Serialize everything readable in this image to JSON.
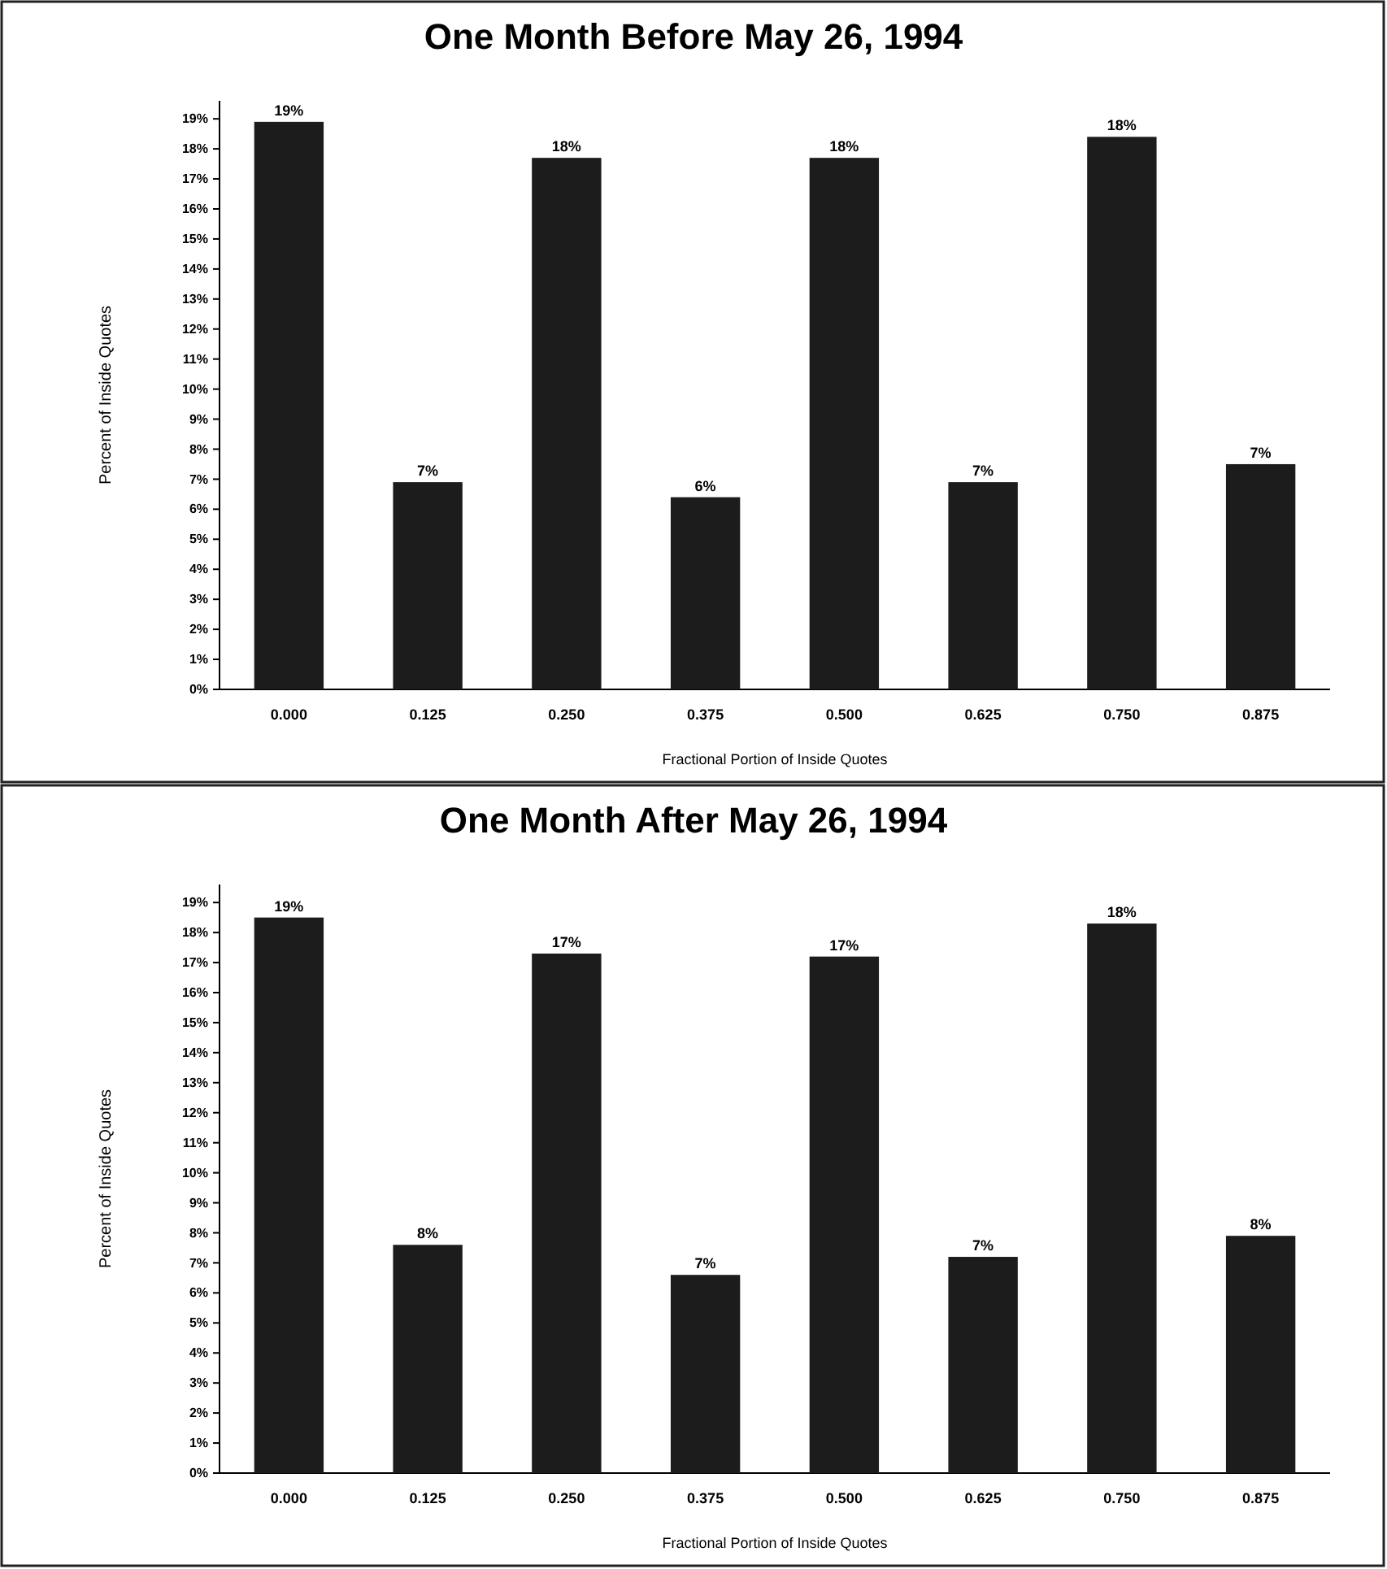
{
  "chart_data": [
    {
      "type": "bar",
      "title": "One Month Before May 26, 1994",
      "xlabel": "Fractional Portion of Inside Quotes",
      "ylabel": "Percent of Inside Quotes",
      "categories": [
        "0.000",
        "0.125",
        "0.250",
        "0.375",
        "0.500",
        "0.625",
        "0.750",
        "0.875"
      ],
      "values": [
        18.9,
        6.9,
        17.7,
        6.4,
        17.7,
        6.9,
        18.4,
        7.5
      ],
      "value_labels": [
        "19%",
        "7%",
        "18%",
        "6%",
        "18%",
        "7%",
        "18%",
        "7%"
      ],
      "color": "#1c1c1c",
      "ylim": [
        0,
        19.6
      ],
      "yticks": [
        {
          "value": 0,
          "label": "0%"
        },
        {
          "value": 1,
          "label": "1%"
        },
        {
          "value": 2,
          "label": "2%"
        },
        {
          "value": 3,
          "label": "3%"
        },
        {
          "value": 4,
          "label": "4%"
        },
        {
          "value": 5,
          "label": "5%"
        },
        {
          "value": 6,
          "label": "6%"
        },
        {
          "value": 7,
          "label": "7%"
        },
        {
          "value": 8,
          "label": "8%"
        },
        {
          "value": 9,
          "label": "9%"
        },
        {
          "value": 10,
          "label": "10%"
        },
        {
          "value": 11,
          "label": "11%"
        },
        {
          "value": 12,
          "label": "12%"
        },
        {
          "value": 13,
          "label": "13%"
        },
        {
          "value": 14,
          "label": "14%"
        },
        {
          "value": 15,
          "label": "15%"
        },
        {
          "value": 16,
          "label": "16%"
        },
        {
          "value": 17,
          "label": "17%"
        },
        {
          "value": 18,
          "label": "18%"
        },
        {
          "value": 19,
          "label": "19%"
        }
      ]
    },
    {
      "type": "bar",
      "title": "One Month After May 26, 1994",
      "xlabel": "Fractional Portion of Inside Quotes",
      "ylabel": "Percent of Inside Quotes",
      "categories": [
        "0.000",
        "0.125",
        "0.250",
        "0.375",
        "0.500",
        "0.625",
        "0.750",
        "0.875"
      ],
      "values": [
        18.5,
        7.6,
        17.3,
        6.6,
        17.2,
        7.2,
        18.3,
        7.9
      ],
      "value_labels": [
        "19%",
        "8%",
        "17%",
        "7%",
        "17%",
        "7%",
        "18%",
        "8%"
      ],
      "color": "#1c1c1c",
      "ylim": [
        0,
        19.6
      ],
      "yticks": [
        {
          "value": 0,
          "label": "0%"
        },
        {
          "value": 1,
          "label": "1%"
        },
        {
          "value": 2,
          "label": "2%"
        },
        {
          "value": 3,
          "label": "3%"
        },
        {
          "value": 4,
          "label": "4%"
        },
        {
          "value": 5,
          "label": "5%"
        },
        {
          "value": 6,
          "label": "6%"
        },
        {
          "value": 7,
          "label": "7%"
        },
        {
          "value": 8,
          "label": "8%"
        },
        {
          "value": 9,
          "label": "9%"
        },
        {
          "value": 10,
          "label": "10%"
        },
        {
          "value": 11,
          "label": "11%"
        },
        {
          "value": 12,
          "label": "12%"
        },
        {
          "value": 13,
          "label": "13%"
        },
        {
          "value": 14,
          "label": "14%"
        },
        {
          "value": 15,
          "label": "15%"
        },
        {
          "value": 16,
          "label": "16%"
        },
        {
          "value": 17,
          "label": "17%"
        },
        {
          "value": 18,
          "label": "18%"
        },
        {
          "value": 19,
          "label": "19%"
        }
      ]
    }
  ]
}
